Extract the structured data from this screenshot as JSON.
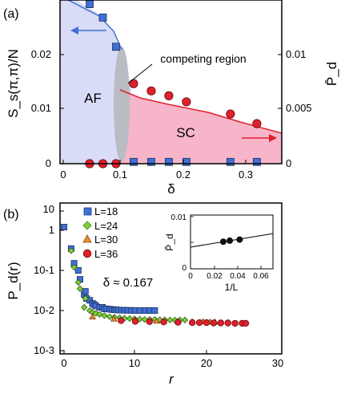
{
  "chart_data": [
    {
      "panel_label": "(a)",
      "type": "area",
      "xlabel": "δ",
      "ylabel": "S_s(π,π)/N",
      "ylabel_right": "P̄_d",
      "xlim": [
        0,
        0.35
      ],
      "ylim_left": [
        0,
        0.028
      ],
      "ylim_right": [
        0,
        0.0135
      ],
      "xticks": [
        "0",
        "0.1",
        "0.2",
        "0.3"
      ],
      "yticks_left": [
        "0",
        "0.01",
        "0.02"
      ],
      "yticks_right": [
        "0",
        "0.005",
        "0.01"
      ],
      "regions": [
        {
          "name": "AF",
          "color": "#d9dcf6"
        },
        {
          "name": "SC",
          "color": "#f6b5c9"
        },
        {
          "name": "competing region",
          "color": "#b9bcc2"
        }
      ],
      "series": [
        {
          "axis": "left",
          "marker": "square",
          "color": "#3f6fd4",
          "points": [
            [
              0.0417,
              0.0273
            ],
            [
              0.0625,
              0.025
            ],
            [
              0.0833,
              0.02
            ],
            [
              0.1111,
              0.0003
            ],
            [
              0.1389,
              0.0003
            ],
            [
              0.1667,
              0.0003
            ],
            [
              0.1944,
              0.0003
            ],
            [
              0.2639,
              0.0003
            ],
            [
              0.3056,
              0.0003
            ]
          ]
        },
        {
          "axis": "right",
          "marker": "circle",
          "color": "#e0202a",
          "points": [
            [
              0.0417,
              0.0
            ],
            [
              0.0625,
              0.0
            ],
            [
              0.0833,
              0.0
            ],
            [
              0.1111,
              0.0066
            ],
            [
              0.1389,
              0.006
            ],
            [
              0.1667,
              0.0056
            ],
            [
              0.1944,
              0.0051
            ],
            [
              0.2639,
              0.0041
            ],
            [
              0.3056,
              0.0033
            ]
          ]
        }
      ],
      "annotations": [
        "competing region",
        "AF",
        "SC"
      ]
    },
    {
      "panel_label": "(b)",
      "type": "scatter",
      "xlabel": "r",
      "ylabel": "P_d(r)",
      "xlim": [
        0,
        30
      ],
      "ylim": [
        0.001,
        30
      ],
      "yscale": "log",
      "xticks": [
        "0",
        "10",
        "20",
        "30"
      ],
      "yticks": [
        "10-3",
        "10-2",
        "10-1",
        "1",
        "10"
      ],
      "annotation": "δ ≈ 0.167",
      "legend_position": "top-left",
      "series": [
        {
          "name": "L=18",
          "marker": "square",
          "color": "#3f6fd4",
          "points": [
            [
              0,
              1.2
            ],
            [
              1,
              0.35
            ],
            [
              1.41,
              0.15
            ],
            [
              2,
              0.1
            ],
            [
              2.24,
              0.06
            ],
            [
              2.83,
              0.025
            ],
            [
              3,
              0.03
            ],
            [
              3.16,
              0.02
            ],
            [
              3.61,
              0.018
            ],
            [
              4,
              0.015
            ],
            [
              4.24,
              0.014
            ],
            [
              4.47,
              0.013
            ],
            [
              5,
              0.012
            ],
            [
              5.39,
              0.012
            ],
            [
              5.66,
              0.011
            ],
            [
              6,
              0.011
            ],
            [
              6.4,
              0.0108
            ],
            [
              6.71,
              0.0106
            ],
            [
              7.07,
              0.0105
            ],
            [
              7.28,
              0.0104
            ],
            [
              7.62,
              0.0103
            ],
            [
              8.06,
              0.0102
            ],
            [
              8.49,
              0.0102
            ],
            [
              8.94,
              0.0101
            ],
            [
              9.49,
              0.0101
            ],
            [
              10,
              0.01
            ],
            [
              10.63,
              0.01
            ],
            [
              11.4,
              0.01
            ],
            [
              12.04,
              0.01
            ],
            [
              12.73,
              0.01
            ]
          ]
        },
        {
          "name": "L=24",
          "marker": "diamond",
          "color": "#7cd13a",
          "points": [
            [
              1,
              0.31
            ],
            [
              1.41,
              0.12
            ],
            [
              2,
              0.05
            ],
            [
              2.24,
              0.035
            ],
            [
              2.83,
              0.012
            ],
            [
              3,
              0.02
            ],
            [
              3.61,
              0.01
            ],
            [
              4,
              0.009
            ],
            [
              4.47,
              0.0085
            ],
            [
              5,
              0.008
            ],
            [
              5.66,
              0.0075
            ],
            [
              6.4,
              0.007
            ],
            [
              7.07,
              0.0068
            ],
            [
              7.81,
              0.0066
            ],
            [
              8.49,
              0.0064
            ],
            [
              9.22,
              0.0063
            ],
            [
              9.9,
              0.0062
            ],
            [
              10.63,
              0.0061
            ],
            [
              11.31,
              0.006
            ],
            [
              12.04,
              0.006
            ],
            [
              12.73,
              0.006
            ],
            [
              13.45,
              0.0059
            ],
            [
              14.14,
              0.0059
            ],
            [
              14.87,
              0.0058
            ],
            [
              15.56,
              0.0058
            ],
            [
              16.28,
              0.0058
            ],
            [
              16.97,
              0.0058
            ]
          ]
        },
        {
          "name": "L=30",
          "marker": "triangle",
          "color": "#f08a2a",
          "points": [
            [
              4,
              0.007
            ],
            [
              7,
              0.0062
            ],
            [
              10,
              0.0058
            ],
            [
              13,
              0.0055
            ],
            [
              16,
              0.0054
            ],
            [
              18,
              0.0053
            ],
            [
              19.5,
              0.0053
            ],
            [
              20.5,
              0.0052
            ],
            [
              21.2,
              0.0052
            ]
          ]
        },
        {
          "name": "L=36",
          "marker": "circle",
          "color": "#e0202a",
          "points": [
            [
              8,
              0.0056
            ],
            [
              10,
              0.0054
            ],
            [
              12,
              0.0053
            ],
            [
              14,
              0.0052
            ],
            [
              16,
              0.0051
            ],
            [
              18,
              0.005
            ],
            [
              19,
              0.005
            ],
            [
              20,
              0.005
            ],
            [
              21,
              0.0049
            ],
            [
              22,
              0.0049
            ],
            [
              23,
              0.0049
            ],
            [
              24,
              0.0048
            ],
            [
              25,
              0.0048
            ],
            [
              25.5,
              0.0048
            ]
          ]
        }
      ]
    },
    {
      "panel_label": "inset",
      "type": "scatter",
      "xlabel": "1/L",
      "ylabel": "P̄_d",
      "xlim": [
        0,
        0.07
      ],
      "ylim": [
        0,
        0.01
      ],
      "xticks": [
        "0",
        "0.02",
        "0.04",
        "0.06"
      ],
      "yticks": [
        "0",
        "0.01"
      ],
      "series": [
        {
          "marker": "circle",
          "color": "#111111",
          "points": [
            [
              0.0278,
              0.0052
            ],
            [
              0.0333,
              0.0054
            ],
            [
              0.0417,
              0.0056
            ]
          ]
        }
      ],
      "fit_line": {
        "slope": 0.037,
        "intercept": 0.00416
      }
    }
  ]
}
